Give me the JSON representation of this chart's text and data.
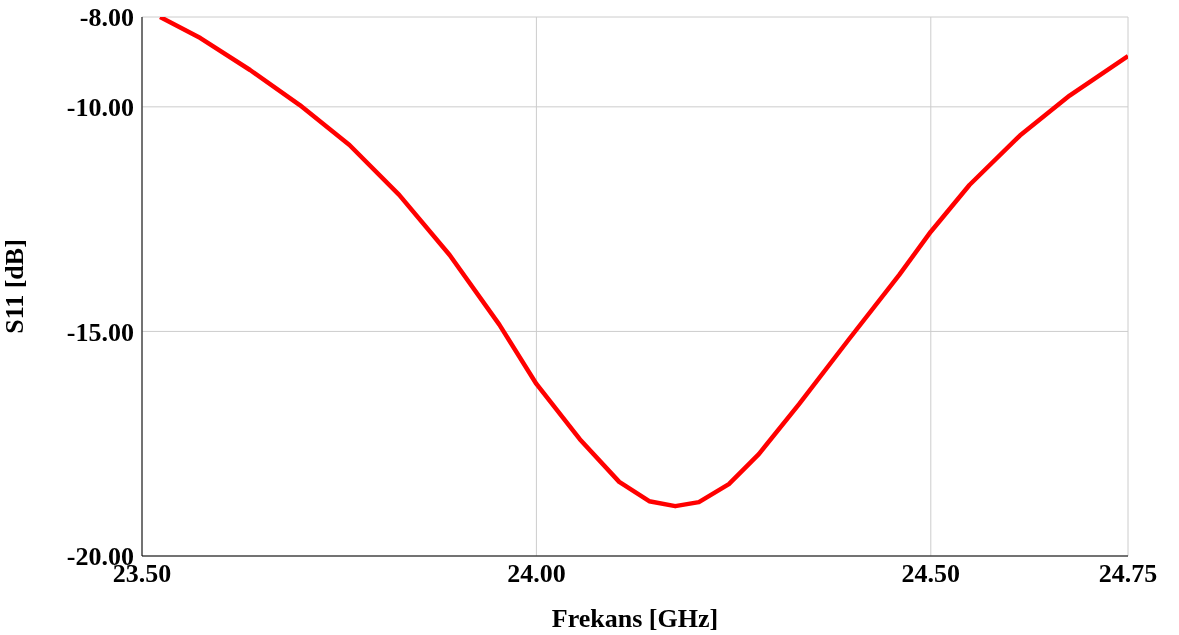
{
  "chart_data": {
    "type": "line",
    "xlabel": "Frekans [GHz]",
    "ylabel": "S11 [dB]",
    "x": [
      23.523,
      23.574,
      23.637,
      23.7,
      23.763,
      23.826,
      23.89,
      23.953,
      24.0,
      24.055,
      24.105,
      24.143,
      24.176,
      24.206,
      24.244,
      24.282,
      24.333,
      24.396,
      24.46,
      24.5,
      24.549,
      24.613,
      24.676,
      24.75
    ],
    "series": [
      {
        "color": "#ff0000",
        "values": [
          -8.0,
          -8.47,
          -9.18,
          -9.96,
          -10.85,
          -11.96,
          -13.3,
          -14.85,
          -16.17,
          -17.4,
          -18.35,
          -18.78,
          -18.89,
          -18.8,
          -18.4,
          -17.73,
          -16.62,
          -15.18,
          -13.74,
          -12.78,
          -11.74,
          -10.64,
          -9.75,
          -8.87
        ]
      }
    ],
    "xlim": [
      23.5,
      24.75
    ],
    "ylim": [
      -20,
      -8
    ],
    "xticks": [
      {
        "value": 23.5,
        "label": "23.50"
      },
      {
        "value": 24,
        "label": "24.00"
      },
      {
        "value": 24.5,
        "label": "24.50"
      },
      {
        "value": 24.75,
        "label": "24.75"
      }
    ],
    "yticks": [
      {
        "value": -20,
        "label": "-20.00"
      },
      {
        "value": -15,
        "label": "-15.00"
      },
      {
        "value": -10,
        "label": "-10.00"
      },
      {
        "value": -8,
        "label": "-8.00"
      }
    ],
    "grid": true,
    "marker": "none",
    "line_style": "solid"
  }
}
